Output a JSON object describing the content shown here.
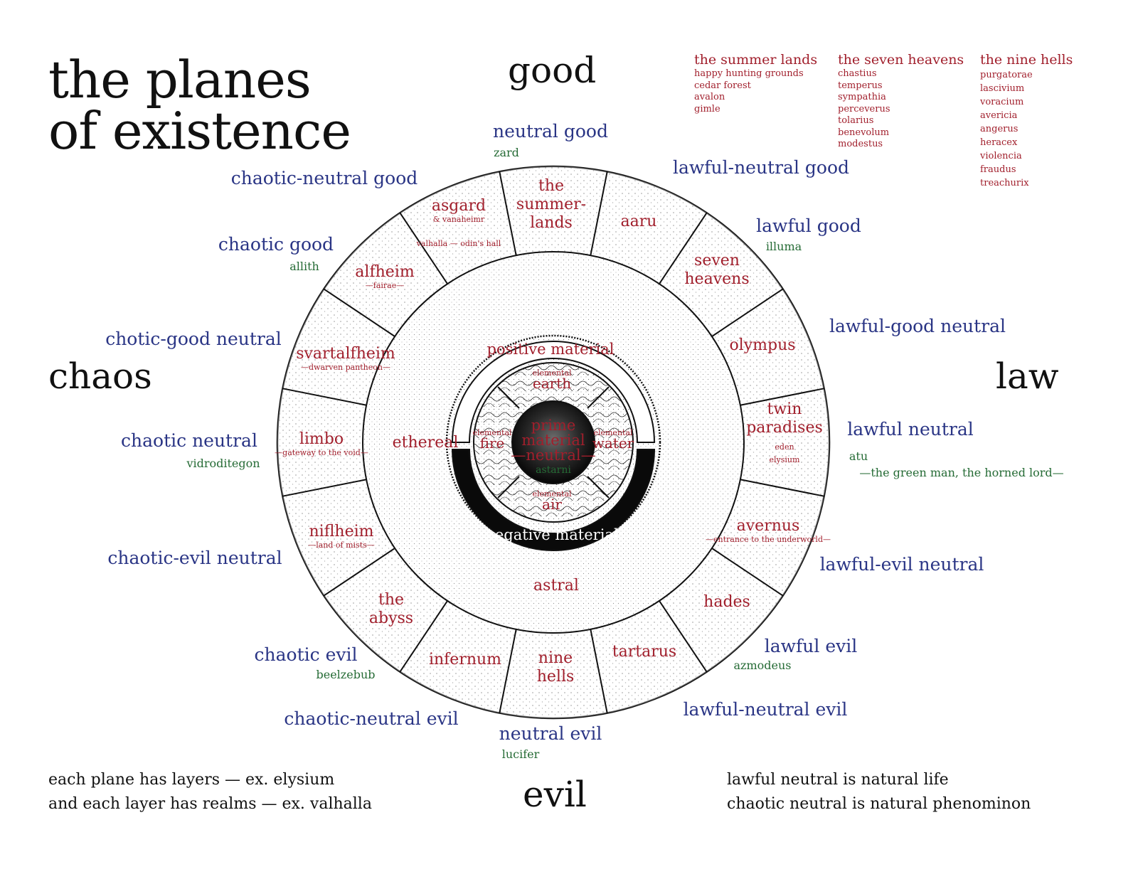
{
  "title": {
    "line1": "the planes",
    "line2": "of existence"
  },
  "axes": {
    "good": "good",
    "evil": "evil",
    "chaos": "chaos",
    "law": "law"
  },
  "colors": {
    "alignment": "#2a3585",
    "deity": "#256b35",
    "plane": "#a11f2c",
    "ink": "#111111"
  },
  "alignments": [
    {
      "label": "neutral good",
      "deity": "zard"
    },
    {
      "label": "lawful-neutral good",
      "deity": ""
    },
    {
      "label": "lawful good",
      "deity": "illuma"
    },
    {
      "label": "lawful-good neutral",
      "deity": ""
    },
    {
      "label": "lawful neutral",
      "deity": "atu"
    },
    {
      "label": "lawful-evil neutral",
      "deity": ""
    },
    {
      "label": "lawful evil",
      "deity": "azmodeus"
    },
    {
      "label": "lawful-neutral evil",
      "deity": ""
    },
    {
      "label": "neutral evil",
      "deity": "lucifer"
    },
    {
      "label": "chaotic-neutral evil",
      "deity": ""
    },
    {
      "label": "chaotic evil",
      "deity": "beelzebub"
    },
    {
      "label": "chaotic-evil neutral",
      "deity": ""
    },
    {
      "label": "chaotic neutral",
      "deity": "vidroditegon"
    },
    {
      "label": "chotic-good neutral",
      "deity": ""
    },
    {
      "label": "chaotic good",
      "deity": "allith"
    },
    {
      "label": "chaotic-neutral good",
      "deity": ""
    }
  ],
  "atu_epithet": "—the green man, the horned lord—",
  "outer_planes": [
    {
      "lines": [
        "the",
        "summer-",
        "lands"
      ],
      "note": ""
    },
    {
      "lines": [
        "aaru"
      ],
      "note": ""
    },
    {
      "lines": [
        "seven",
        "heavens"
      ],
      "note": ""
    },
    {
      "lines": [
        "olympus"
      ],
      "note": ""
    },
    {
      "lines": [
        "twin",
        "paradises"
      ],
      "note": "eden\nelysium"
    },
    {
      "lines": [
        "avernus"
      ],
      "note": "—entrance to the underworld—"
    },
    {
      "lines": [
        "hades"
      ],
      "note": ""
    },
    {
      "lines": [
        "tartarus"
      ],
      "note": ""
    },
    {
      "lines": [
        "nine",
        "hells"
      ],
      "note": ""
    },
    {
      "lines": [
        "infernum"
      ],
      "note": ""
    },
    {
      "lines": [
        "the",
        "abyss"
      ],
      "note": ""
    },
    {
      "lines": [
        "niflheim"
      ],
      "note": "—land of mists—"
    },
    {
      "lines": [
        "limbo"
      ],
      "note": "—gateway to the void—"
    },
    {
      "lines": [
        "svartalfheim"
      ],
      "note": "—dwarven pantheon—"
    },
    {
      "lines": [
        "alfheim"
      ],
      "note": "—fairae—"
    },
    {
      "lines": [
        "asgard"
      ],
      "note": "& vanaheimr"
    }
  ],
  "asgard_realm": "valhalla — odin's hall",
  "inner": {
    "astral": "astral",
    "ethereal": "ethereal",
    "positive": "positive material",
    "negative": "negative material",
    "earth_small": "elemental",
    "earth": "earth",
    "air_small": "elemental",
    "air": "air",
    "fire_small": "elemental",
    "fire": "fire",
    "water_small": "elemental",
    "water": "water",
    "prime1": "prime",
    "prime2": "material",
    "prime3": "—neutral—",
    "prime_deity": "astarni"
  },
  "legend": [
    {
      "heading": "the summer lands",
      "items": [
        "happy hunting grounds",
        "cedar forest",
        "avalon",
        "gimle"
      ]
    },
    {
      "heading": "the seven heavens",
      "items": [
        "chastius",
        "temperus",
        "sympathia",
        "perceverus",
        "tolarius",
        "benevolum",
        "modestus"
      ]
    },
    {
      "heading": "the nine hells",
      "items": [
        "purgatorae",
        "lascivium",
        "voracium",
        "avericia",
        "angerus",
        "heracex",
        "violencia",
        "fraudus",
        "treachurix"
      ]
    }
  ],
  "footnotes": {
    "left1": "each plane has layers — ex. elysium",
    "left2": "and each layer has realms — ex. valhalla",
    "right1": "lawful neutral is natural life",
    "right2": "chaotic neutral  is natural phenominon"
  }
}
